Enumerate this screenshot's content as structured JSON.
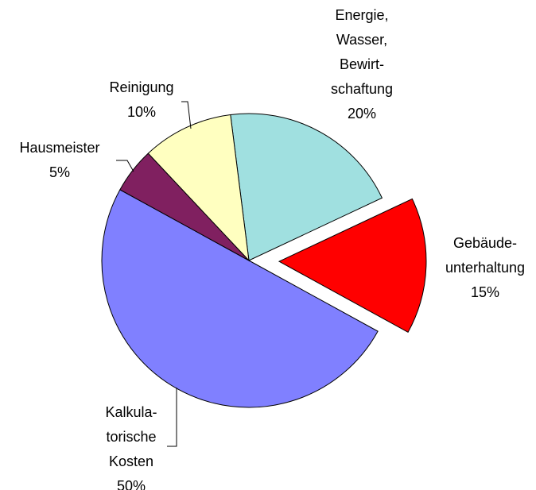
{
  "chart_data": {
    "type": "pie",
    "categories": [
      "Energie,\nWasser,\nBewirt-\nschaftung",
      "Gebäude-\nunterhaltung",
      "Kalkula-\ntorische\nKosten",
      "Hausmeister",
      "Reinigung"
    ],
    "values": [
      20,
      15,
      50,
      5,
      10
    ],
    "value_labels": [
      "20%",
      "15%",
      "50%",
      "5%",
      "10%"
    ],
    "colors": [
      "#a0e0e0",
      "#ff0000",
      "#8080ff",
      "#802060",
      "#ffffc0"
    ],
    "exploded": [
      false,
      true,
      false,
      false,
      false
    ]
  }
}
